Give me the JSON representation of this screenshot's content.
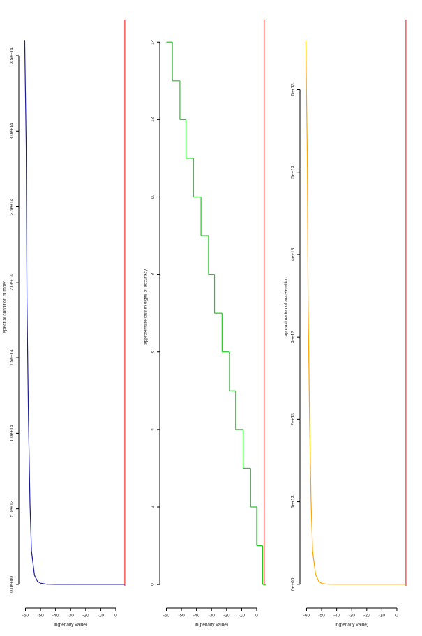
{
  "chart_data": [
    {
      "type": "line",
      "xlabel": "ln(penalty value)",
      "ylabel": "spectral condition number",
      "x": [
        -60.5,
        -59.5,
        -59,
        -58,
        -57,
        -56,
        -54,
        -52,
        -50,
        -46,
        -40,
        -20,
        0,
        6
      ],
      "values": [
        360000000000000.0,
        290000000000000.0,
        190000000000000.0,
        110000000000000.0,
        54000000000000.0,
        22000000000000.0,
        6000000000000.0,
        2000000000000.0,
        800000000000.0,
        100000000000.0,
        10000000000.0,
        100000000.0,
        1000000.0,
        1000000.0
      ],
      "color": "#1c1c9c",
      "vline": 6,
      "vline_color": "#ff0000",
      "xlim": [
        -63,
        6.5
      ],
      "xticks": [
        -60,
        -50,
        -40,
        -30,
        -20,
        -10,
        0
      ],
      "ylim": [
        -6500000000000.0,
        374000000000000.0
      ],
      "yticks": [
        {
          "value": 0,
          "label": "0.0e+00"
        },
        {
          "value": 50000000000000.0,
          "label": "5.0e+13"
        },
        {
          "value": 100000000000000.0,
          "label": "1.0e+14"
        },
        {
          "value": 150000000000000.0,
          "label": "1.5e+14"
        },
        {
          "value": 200000000000000.0,
          "label": "2.0e+14"
        },
        {
          "value": 250000000000000.0,
          "label": "2.5e+14"
        },
        {
          "value": 300000000000000.0,
          "label": "3.0e+14"
        },
        {
          "value": 350000000000000.0,
          "label": "3.5e+14"
        }
      ]
    },
    {
      "type": "step",
      "xlabel": "ln(penalty value)",
      "ylabel": "approximate loss in digits of accuracy",
      "x": [
        -60,
        -56,
        -51,
        -47,
        -42,
        -37,
        -32,
        -28,
        -23,
        -18,
        -14,
        -9,
        -4,
        0,
        4
      ],
      "values": [
        14,
        13,
        12,
        11,
        10,
        9,
        8,
        7,
        6,
        5,
        4,
        3,
        2,
        1,
        0
      ],
      "color": "#22c822",
      "vline": 5,
      "vline_color": "#ff0000",
      "xlim": [
        -63,
        6.5
      ],
      "xticks": [
        -60,
        -50,
        -40,
        -30,
        -20,
        -10,
        0
      ],
      "ylim": [
        -0.25,
        14.58
      ],
      "yticks": [
        0,
        2,
        4,
        6,
        8,
        10,
        12,
        14
      ]
    },
    {
      "type": "line",
      "xlabel": "ln(penalty value)",
      "ylabel": "approximation of acceleration",
      "x": [
        -60.5,
        -59.5,
        -59,
        -58,
        -57,
        -56,
        -54,
        -52,
        -50,
        -46,
        -40,
        -20,
        0,
        6
      ],
      "values": [
        66000000000000.0,
        52000000000000.0,
        35000000000000.0,
        20000000000000.0,
        10000000000000.0,
        4000000000000.0,
        1200000000000.0,
        400000000000.0,
        100000000000.0,
        10000000000.0,
        1000000000.0,
        10000000.0,
        100000.0,
        100000.0
      ],
      "color": "#ffa500",
      "vline": 6,
      "vline_color": "#ff0000",
      "xlim": [
        -63,
        6.5
      ],
      "xticks": [
        -60,
        -50,
        -40,
        -30,
        -20,
        -10,
        0
      ],
      "ylim": [
        -1200000000000.0,
        68500000000000.0
      ],
      "yticks": [
        {
          "value": 0,
          "label": "0e+00"
        },
        {
          "value": 10000000000000.0,
          "label": "1e+13"
        },
        {
          "value": 20000000000000.0,
          "label": "2e+13"
        },
        {
          "value": 30000000000000.0,
          "label": "3e+13"
        },
        {
          "value": 40000000000000.0,
          "label": "4e+13"
        },
        {
          "value": 50000000000000.0,
          "label": "5e+13"
        },
        {
          "value": 60000000000000.0,
          "label": "6e+13"
        }
      ]
    }
  ]
}
